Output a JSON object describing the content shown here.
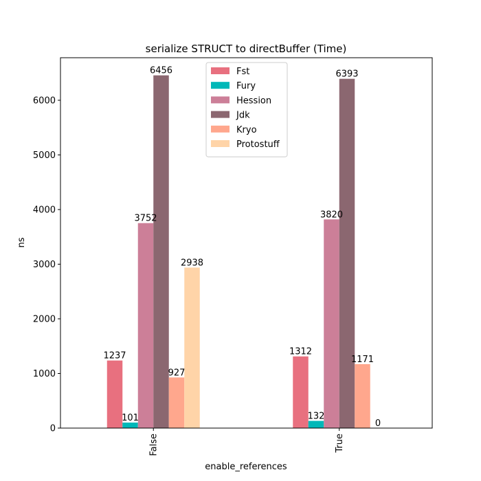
{
  "chart_data": {
    "type": "bar",
    "title": "serialize STRUCT to directBuffer (Time)",
    "xlabel": "enable_references",
    "ylabel": "ns",
    "categories": [
      "False",
      "True"
    ],
    "ylim": [
      0,
      6778.8
    ],
    "yticks": [
      0,
      1000,
      2000,
      3000,
      4000,
      5000,
      6000
    ],
    "grid": false,
    "legend_position": "top-center",
    "series": [
      {
        "name": "Fst",
        "color": "#e8707f",
        "values": [
          1237,
          1312
        ],
        "labels": [
          "1237",
          "1312"
        ]
      },
      {
        "name": "Fury",
        "color": "#00b8b8",
        "values": [
          101,
          132
        ],
        "labels": [
          "101",
          "132"
        ]
      },
      {
        "name": "Hession",
        "color": "#cc7f98",
        "values": [
          3752,
          3820
        ],
        "labels": [
          "3752",
          "3820"
        ]
      },
      {
        "name": "Jdk",
        "color": "#8b6770",
        "values": [
          6456,
          6393
        ],
        "labels": [
          "6456",
          "6393"
        ]
      },
      {
        "name": "Kryo",
        "color": "#ffa78d",
        "values": [
          927,
          1171
        ],
        "labels": [
          "927",
          "1171"
        ]
      },
      {
        "name": "Protostuff",
        "color": "#ffd4a8",
        "values": [
          2938,
          0
        ],
        "labels": [
          "2938",
          "0"
        ]
      }
    ]
  }
}
